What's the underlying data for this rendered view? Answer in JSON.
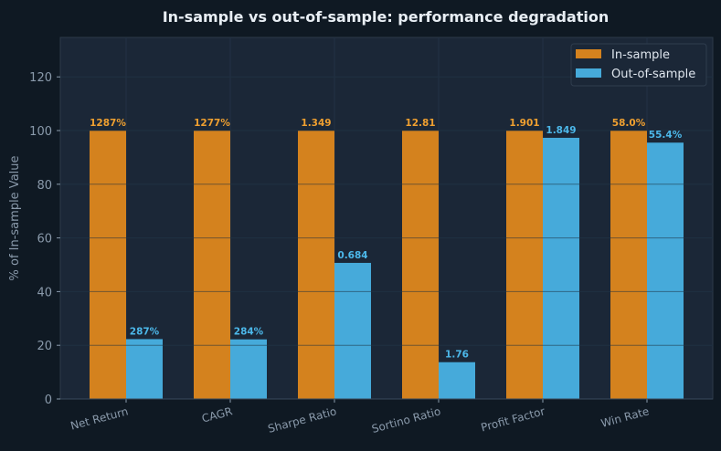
{
  "chart_data": {
    "type": "bar",
    "title": "In-sample vs out-of-sample: performance degradation",
    "xlabel": "",
    "ylabel": "% of In-sample Value",
    "ylim": [
      0,
      134.7
    ],
    "yticks": [
      0,
      20,
      40,
      60,
      80,
      100,
      120
    ],
    "grid": true,
    "legend_placement": "top-right",
    "categories": [
      "Net Return",
      "CAGR",
      "Sharpe Ratio",
      "Sortino Ratio",
      "Profit Factor",
      "Win Rate"
    ],
    "series": [
      {
        "name": "In-sample",
        "color": "#d4821e",
        "label_color": "#f0a030",
        "values": [
          100,
          100,
          100,
          100,
          100,
          100
        ],
        "labels": [
          "1287%",
          "1277%",
          "1.349",
          "12.81",
          "1.901",
          "58.0%"
        ]
      },
      {
        "name": "Out-of-sample",
        "color": "#46aada",
        "label_color": "#4cb8ea",
        "values": [
          22.3,
          22.2,
          50.7,
          13.7,
          97.3,
          95.5
        ],
        "labels": [
          "287%",
          "284%",
          "0.684",
          "1.76",
          "1.849",
          "55.4%"
        ]
      }
    ]
  }
}
